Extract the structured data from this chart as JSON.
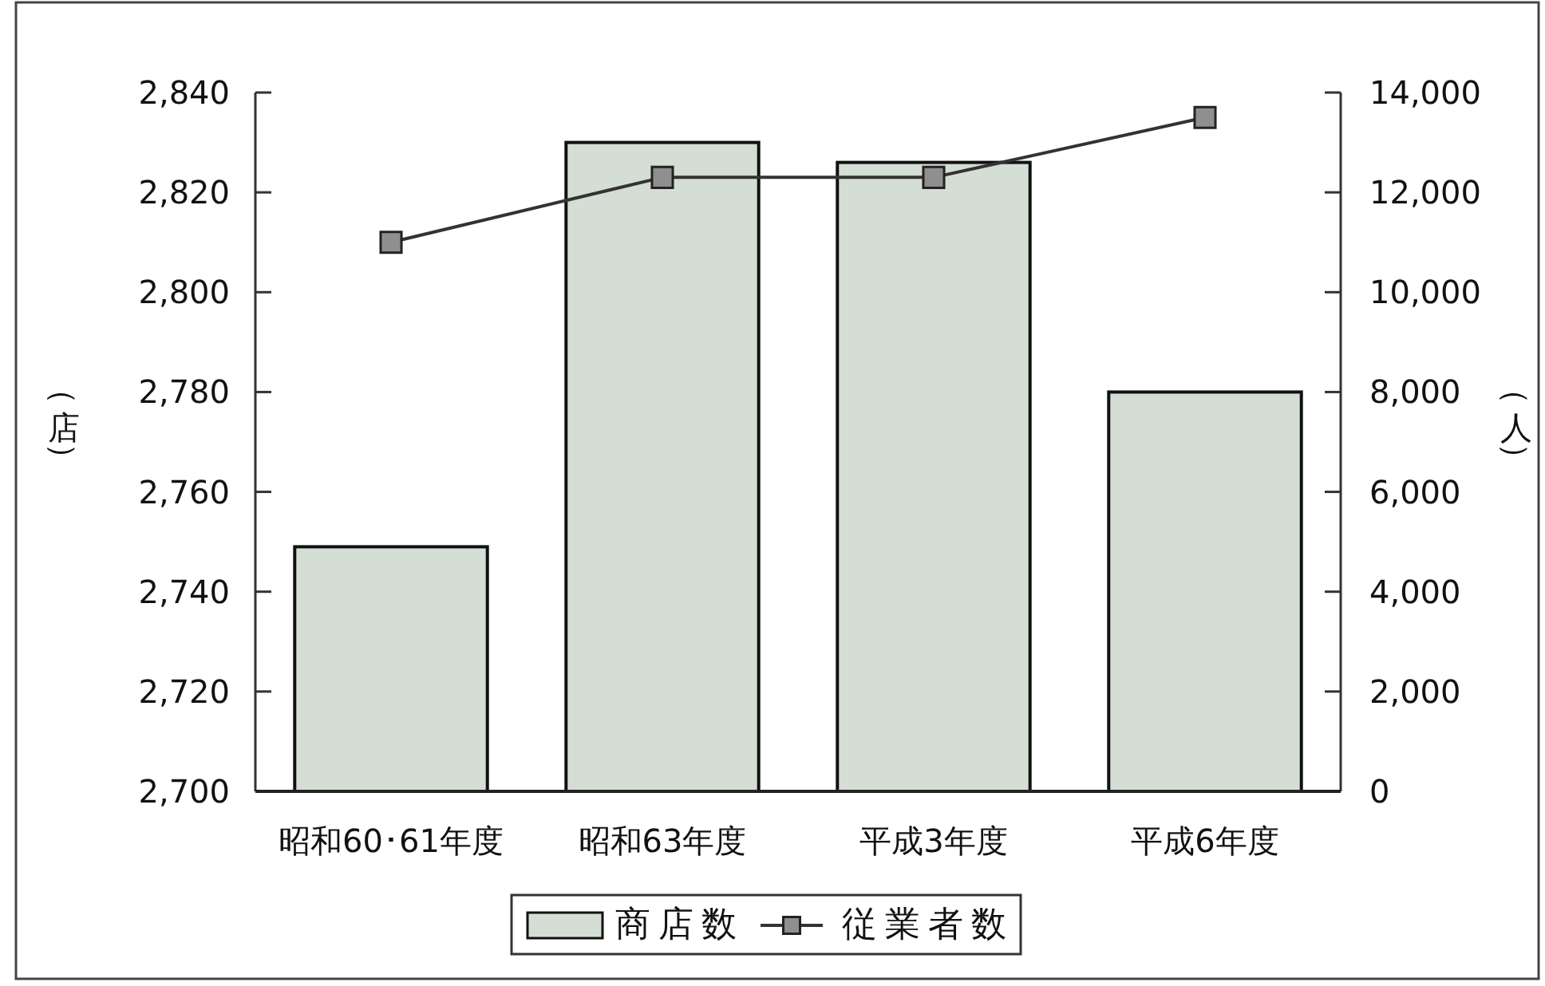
{
  "chart_data": {
    "type": "bar",
    "categories": [
      "昭和60･61年度",
      "昭和63年度",
      "平成3年度",
      "平成6年度"
    ],
    "series": [
      {
        "name": "商店数",
        "color": "#d4ded4",
        "values": [
          2749,
          2830,
          2826,
          2780
        ]
      },
      {
        "name": "従業者数",
        "type": "line",
        "axis": "y2",
        "color": "#333333",
        "values": [
          11000,
          12300,
          12300,
          13500
        ]
      }
    ],
    "ylabel": "（店）",
    "y2label": "（人）",
    "ylim": [
      2700,
      2840
    ],
    "yticks": [
      {
        "value": 2700,
        "label": "2,700"
      },
      {
        "value": 2720,
        "label": "2,720"
      },
      {
        "value": 2740,
        "label": "2,740"
      },
      {
        "value": 2760,
        "label": "2,760"
      },
      {
        "value": 2780,
        "label": "2,780"
      },
      {
        "value": 2800,
        "label": "2,800"
      },
      {
        "value": 2820,
        "label": "2,820"
      },
      {
        "value": 2840,
        "label": "2,840"
      }
    ],
    "y2lim": [
      0,
      14000
    ],
    "y2ticks": [
      0,
      {
        "value": 2000,
        "label": "2,000"
      },
      {
        "value": 4000,
        "label": "4,000"
      },
      {
        "value": 6000,
        "label": "6,000"
      },
      {
        "value": 8000,
        "label": "8,000"
      },
      {
        "value": 10000,
        "label": "10,000"
      },
      {
        "value": 12000,
        "label": "12,000"
      },
      {
        "value": 14000,
        "label": "14,000"
      }
    ],
    "legend": "bottom",
    "marker": "square"
  }
}
